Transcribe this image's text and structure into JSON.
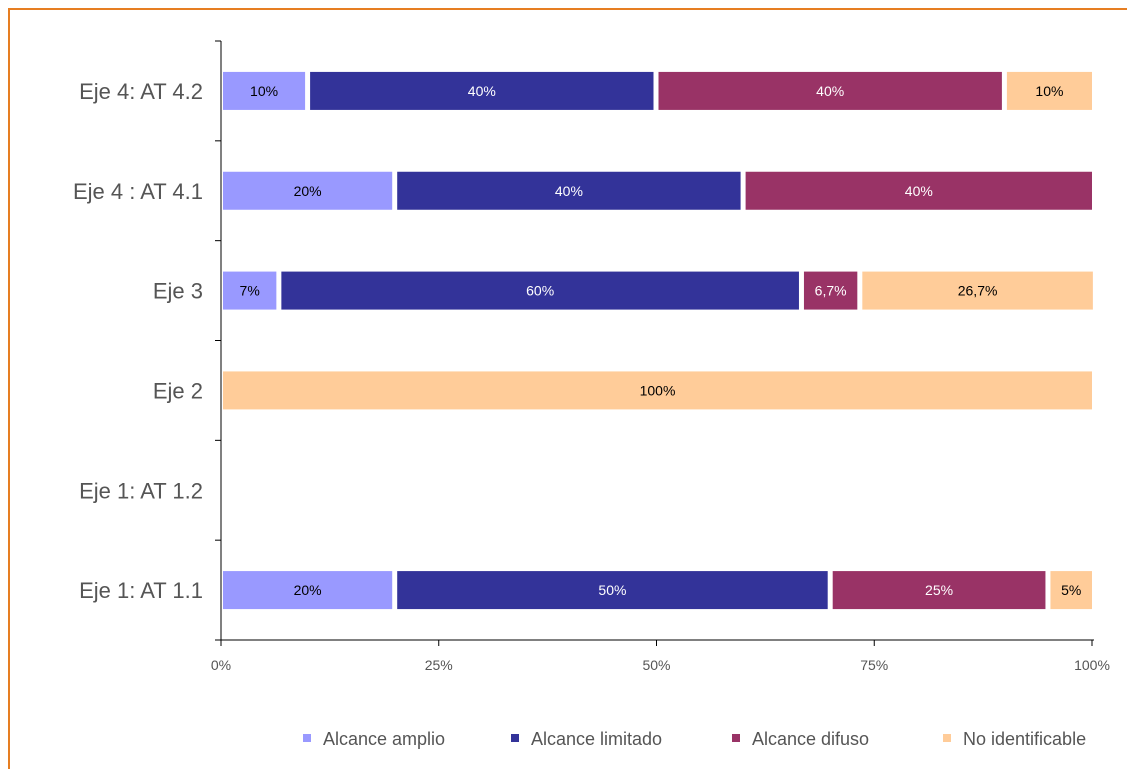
{
  "chart_data": {
    "type": "bar",
    "orientation": "horizontal",
    "stacked": true,
    "categories": [
      "Eje 4: AT 4.2",
      "Eje 4 : AT 4.1",
      "Eje 3",
      "Eje 2",
      "Eje 1: AT 1.2",
      "Eje 1: AT 1.1"
    ],
    "series": [
      {
        "name": "Alcance amplio",
        "color": "#9999ff",
        "label_color": "#000000",
        "values": [
          10,
          20,
          6.7,
          0,
          0,
          20
        ],
        "labels": [
          "10%",
          "20%",
          "7%",
          "",
          "",
          "20%"
        ]
      },
      {
        "name": "Alcance limitado",
        "color": "#333399",
        "label_color": "#ffffff",
        "values": [
          40,
          40,
          60,
          0,
          0,
          50
        ],
        "labels": [
          "40%",
          "40%",
          "60%",
          "",
          "",
          "50%"
        ]
      },
      {
        "name": "Alcance difuso",
        "color": "#993366",
        "label_color": "#ffffff",
        "values": [
          40,
          40,
          6.7,
          0,
          0,
          25
        ],
        "labels": [
          "40%",
          "40%",
          "6,7%",
          "",
          "",
          "25%"
        ]
      },
      {
        "name": "No identificable",
        "color": "#ffcc99",
        "label_color": "#000000",
        "values": [
          10,
          0,
          26.7,
          100,
          0,
          5
        ],
        "labels": [
          "10%",
          "",
          "26,7%",
          "100%",
          "",
          "5%"
        ]
      }
    ],
    "x_ticks": [
      0,
      25,
      50,
      75,
      100
    ],
    "x_tick_labels": [
      "0%",
      "25%",
      "50%",
      "75%",
      "100%"
    ],
    "xlim": [
      0,
      100
    ],
    "grid": false,
    "legend_position": "bottom-right",
    "title": "",
    "xlabel": "",
    "ylabel": ""
  }
}
